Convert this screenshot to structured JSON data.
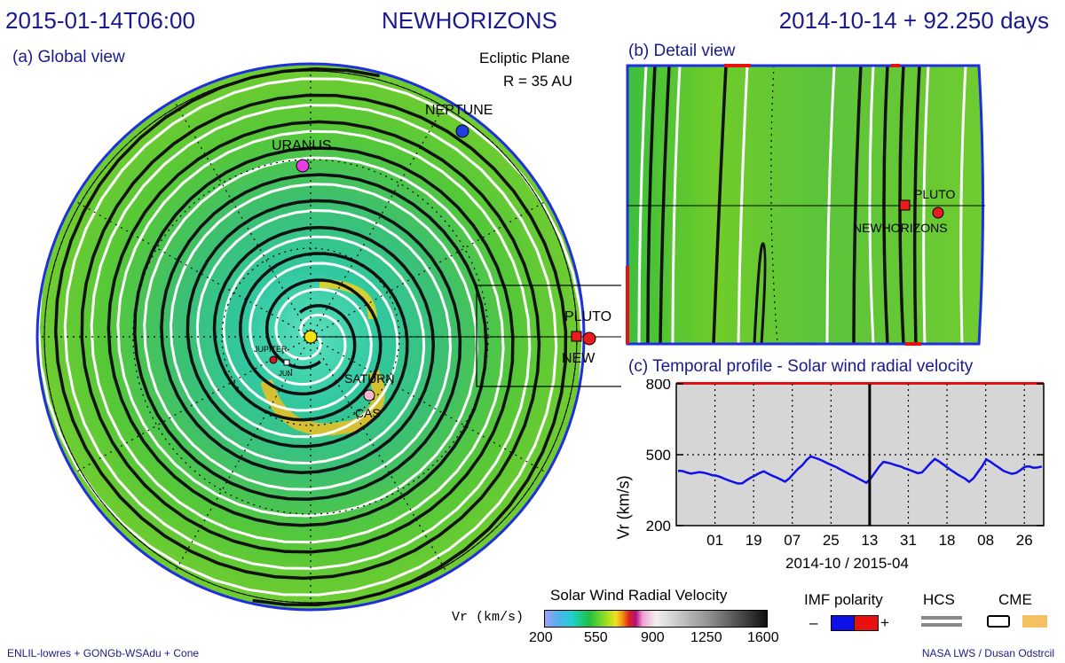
{
  "header": {
    "datetime": "2015-01-14T06:00",
    "mission": "NEWHORIZONS",
    "epoch": "2014-10-14 + 92.250 days"
  },
  "global_view": {
    "label": "(a) Global view",
    "plane": "Ecliptic Plane",
    "radius": "R = 35 AU",
    "bodies": [
      {
        "name": "NEPTUNE",
        "color": "#1f3fe0"
      },
      {
        "name": "URANUS",
        "color": "#e83de0"
      },
      {
        "name": "PLUTO",
        "color": "#e81c1c"
      },
      {
        "name": "NEW",
        "color": "#e81c1c"
      },
      {
        "name": "SATURN",
        "color": "#f3b8d0"
      },
      {
        "name": "CAS",
        "color": "#f3b8d0"
      },
      {
        "name": "JUPITER",
        "color": "#d01818"
      },
      {
        "name": "JUN",
        "color": "#ffffff"
      }
    ]
  },
  "detail_view": {
    "label": "(b) Detail view",
    "pluto": "PLUTO",
    "spacecraft": "NEWHORIZONS"
  },
  "chart_data": {
    "type": "line",
    "title": "(c) Temporal profile - Solar wind radial velocity",
    "xlabel": "2014-10 / 2015-04",
    "ylabel": "Vr (km/s)",
    "ylim": [
      200,
      800
    ],
    "yticks": [
      200,
      500,
      800
    ],
    "x_tick_labels": [
      "01",
      "19",
      "07",
      "25",
      "13",
      "31",
      "18",
      "08",
      "26"
    ],
    "current_time_marker": "13",
    "grid": true,
    "series": [
      {
        "values": [
          432,
          431,
          425,
          420,
          423,
          426,
          424,
          419,
          413,
          411,
          405,
          397,
          390,
          384,
          378,
          379,
          392,
          403,
          412,
          422,
          430,
          420,
          411,
          404,
          395,
          386,
          400,
          420,
          440,
          455,
          477,
          493,
          487,
          480,
          472,
          463,
          455,
          447,
          437,
          428,
          418,
          410,
          400,
          391,
          381,
          400,
          425,
          450,
          470,
          466,
          461,
          455,
          450,
          442,
          436,
          429,
          422,
          425,
          445,
          465,
          482,
          471,
          458,
          445,
          432,
          420,
          409,
          399,
          385,
          400,
          425,
          450,
          480,
          470,
          457,
          445,
          432,
          425,
          419,
          423,
          435,
          449,
          451,
          445,
          446,
          450
        ]
      }
    ]
  },
  "colorbar": {
    "title": "Solar Wind Radial Velocity",
    "unit_label": "Vr (km/s)",
    "ticks": [
      "200",
      "550",
      "900",
      "1250",
      "1600"
    ]
  },
  "legend": {
    "imf_polarity": "IMF polarity",
    "minus": "–",
    "plus": "+",
    "hcs": "HCS",
    "cme": "CME",
    "minus_color": "#1010e8",
    "plus_color": "#e81010",
    "hcs_color": "#888888",
    "cme_color": "#f6c163"
  },
  "footer": {
    "left": "ENLIL-lowres + GONGb-WSAdu + Cone",
    "right": "NASA LWS / Dusan Odstrcil"
  }
}
